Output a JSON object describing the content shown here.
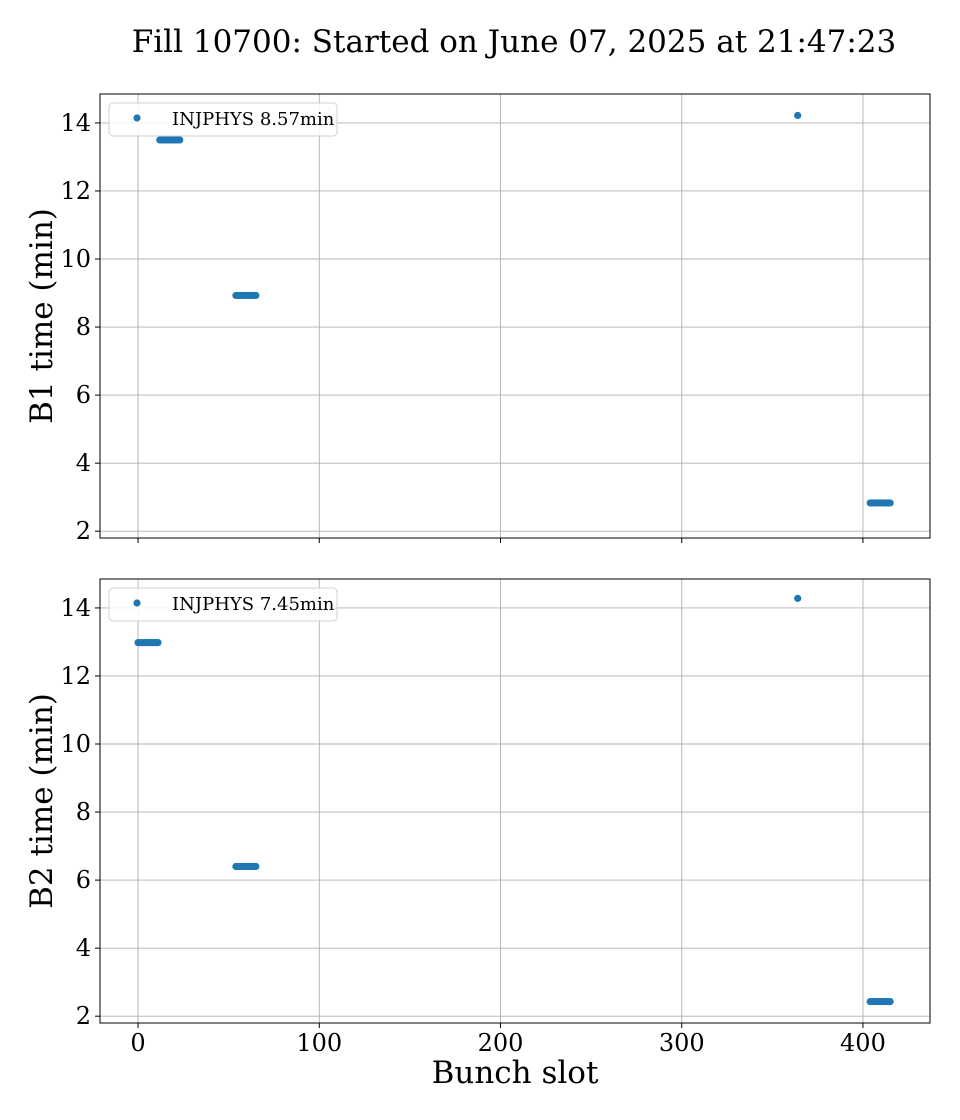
{
  "figure": {
    "title": "Fill 10700: Started on June 07, 2025 at 21:47:23"
  },
  "colors": {
    "series": "#1f77b4",
    "grid": "#b0b0b0",
    "axes": "#000000"
  },
  "chart_data": [
    {
      "type": "scatter",
      "ylabel": "B1 time (min)",
      "xlabel": "",
      "xlim": [
        -21,
        437
      ],
      "ylim": [
        1.8,
        14.85
      ],
      "xticks": [
        0,
        100,
        200,
        300,
        400
      ],
      "yticks": [
        2,
        4,
        6,
        8,
        10,
        12,
        14
      ],
      "xtick_labels_visible": false,
      "grid": true,
      "legend": {
        "position": "upper-left",
        "entries": [
          "INJPHYS 8.57min"
        ]
      },
      "series": [
        {
          "name": "INJPHYS 8.57min",
          "marker": "circle",
          "points": [
            [
              12,
              13.5
            ],
            [
              13,
              13.5
            ],
            [
              14,
              13.5
            ],
            [
              15,
              13.5
            ],
            [
              16,
              13.5
            ],
            [
              17,
              13.5
            ],
            [
              18,
              13.5
            ],
            [
              19,
              13.5
            ],
            [
              20,
              13.5
            ],
            [
              21,
              13.5
            ],
            [
              22,
              13.5
            ],
            [
              23,
              13.5
            ],
            [
              54,
              8.93
            ],
            [
              55,
              8.93
            ],
            [
              56,
              8.93
            ],
            [
              57,
              8.93
            ],
            [
              58,
              8.93
            ],
            [
              59,
              8.93
            ],
            [
              60,
              8.93
            ],
            [
              61,
              8.93
            ],
            [
              62,
              8.93
            ],
            [
              63,
              8.93
            ],
            [
              64,
              8.93
            ],
            [
              65,
              8.93
            ],
            [
              364,
              14.22
            ],
            [
              404,
              2.83
            ],
            [
              405,
              2.83
            ],
            [
              406,
              2.83
            ],
            [
              407,
              2.83
            ],
            [
              408,
              2.83
            ],
            [
              409,
              2.83
            ],
            [
              410,
              2.83
            ],
            [
              411,
              2.83
            ],
            [
              412,
              2.83
            ],
            [
              413,
              2.83
            ],
            [
              414,
              2.83
            ],
            [
              415,
              2.83
            ]
          ]
        }
      ]
    },
    {
      "type": "scatter",
      "ylabel": "B2 time (min)",
      "xlabel": "Bunch slot",
      "xlim": [
        -21,
        437
      ],
      "ylim": [
        1.8,
        14.85
      ],
      "xticks": [
        0,
        100,
        200,
        300,
        400
      ],
      "yticks": [
        2,
        4,
        6,
        8,
        10,
        12,
        14
      ],
      "xtick_labels_visible": true,
      "grid": true,
      "legend": {
        "position": "upper-left",
        "entries": [
          "INJPHYS 7.45min"
        ]
      },
      "series": [
        {
          "name": "INJPHYS 7.45min",
          "marker": "circle",
          "points": [
            [
              0,
              12.98
            ],
            [
              1,
              12.98
            ],
            [
              2,
              12.98
            ],
            [
              3,
              12.98
            ],
            [
              4,
              12.98
            ],
            [
              5,
              12.98
            ],
            [
              6,
              12.98
            ],
            [
              7,
              12.98
            ],
            [
              8,
              12.98
            ],
            [
              9,
              12.98
            ],
            [
              10,
              12.98
            ],
            [
              11,
              12.98
            ],
            [
              54,
              6.4
            ],
            [
              55,
              6.4
            ],
            [
              56,
              6.4
            ],
            [
              57,
              6.4
            ],
            [
              58,
              6.4
            ],
            [
              59,
              6.4
            ],
            [
              60,
              6.4
            ],
            [
              61,
              6.4
            ],
            [
              62,
              6.4
            ],
            [
              63,
              6.4
            ],
            [
              64,
              6.4
            ],
            [
              65,
              6.4
            ],
            [
              364,
              14.28
            ],
            [
              404,
              2.43
            ],
            [
              405,
              2.43
            ],
            [
              406,
              2.43
            ],
            [
              407,
              2.43
            ],
            [
              408,
              2.43
            ],
            [
              409,
              2.43
            ],
            [
              410,
              2.43
            ],
            [
              411,
              2.43
            ],
            [
              412,
              2.43
            ],
            [
              413,
              2.43
            ],
            [
              414,
              2.43
            ],
            [
              415,
              2.43
            ]
          ]
        }
      ]
    }
  ]
}
